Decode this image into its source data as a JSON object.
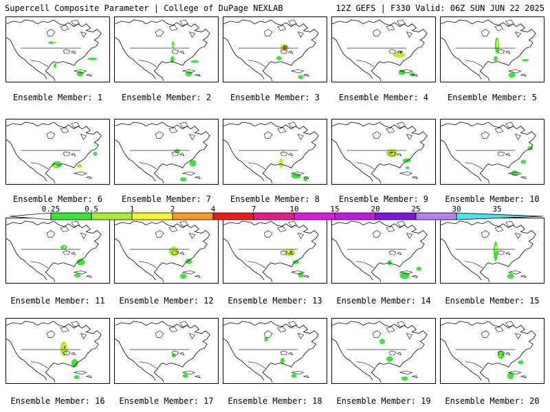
{
  "header": {
    "title_left": "Supercell Composite Parameter | College of DuPage NEXLAB",
    "title_right": "12Z GEFS | F330 Valid: 06Z SUN JUN 22 2025"
  },
  "colorbar": {
    "labels": [
      "0.25",
      "0.5",
      "1",
      "2",
      "4",
      "7",
      "10",
      "15",
      "20",
      "25",
      "30",
      "35"
    ],
    "colors": [
      "#ffffff",
      "#36e736",
      "#a3ef30",
      "#f5f52a",
      "#f79a22",
      "#ee1b1b",
      "#e81a8e",
      "#e01ae0",
      "#c41ae8",
      "#7a16e6",
      "#b482ea",
      "#46e3f0"
    ]
  },
  "members": [
    {
      "label": "Ensemble Member: 1"
    },
    {
      "label": "Ensemble Member: 2"
    },
    {
      "label": "Ensemble Member: 3"
    },
    {
      "label": "Ensemble Member: 4"
    },
    {
      "label": "Ensemble Member: 5"
    },
    {
      "label": "Ensemble Member: 6"
    },
    {
      "label": "Ensemble Member: 7"
    },
    {
      "label": "Ensemble Member: 8"
    },
    {
      "label": "Ensemble Member: 9"
    },
    {
      "label": "Ensemble Member: 10"
    },
    {
      "label": "Ensemble Member: 11"
    },
    {
      "label": "Ensemble Member: 12"
    },
    {
      "label": "Ensemble Member: 13"
    },
    {
      "label": "Ensemble Member: 14"
    },
    {
      "label": "Ensemble Member: 15"
    },
    {
      "label": "Ensemble Member: 16"
    },
    {
      "label": "Ensemble Member: 17"
    },
    {
      "label": "Ensemble Member: 18"
    },
    {
      "label": "Ensemble Member: 19"
    },
    {
      "label": "Ensemble Member: 20"
    }
  ]
}
